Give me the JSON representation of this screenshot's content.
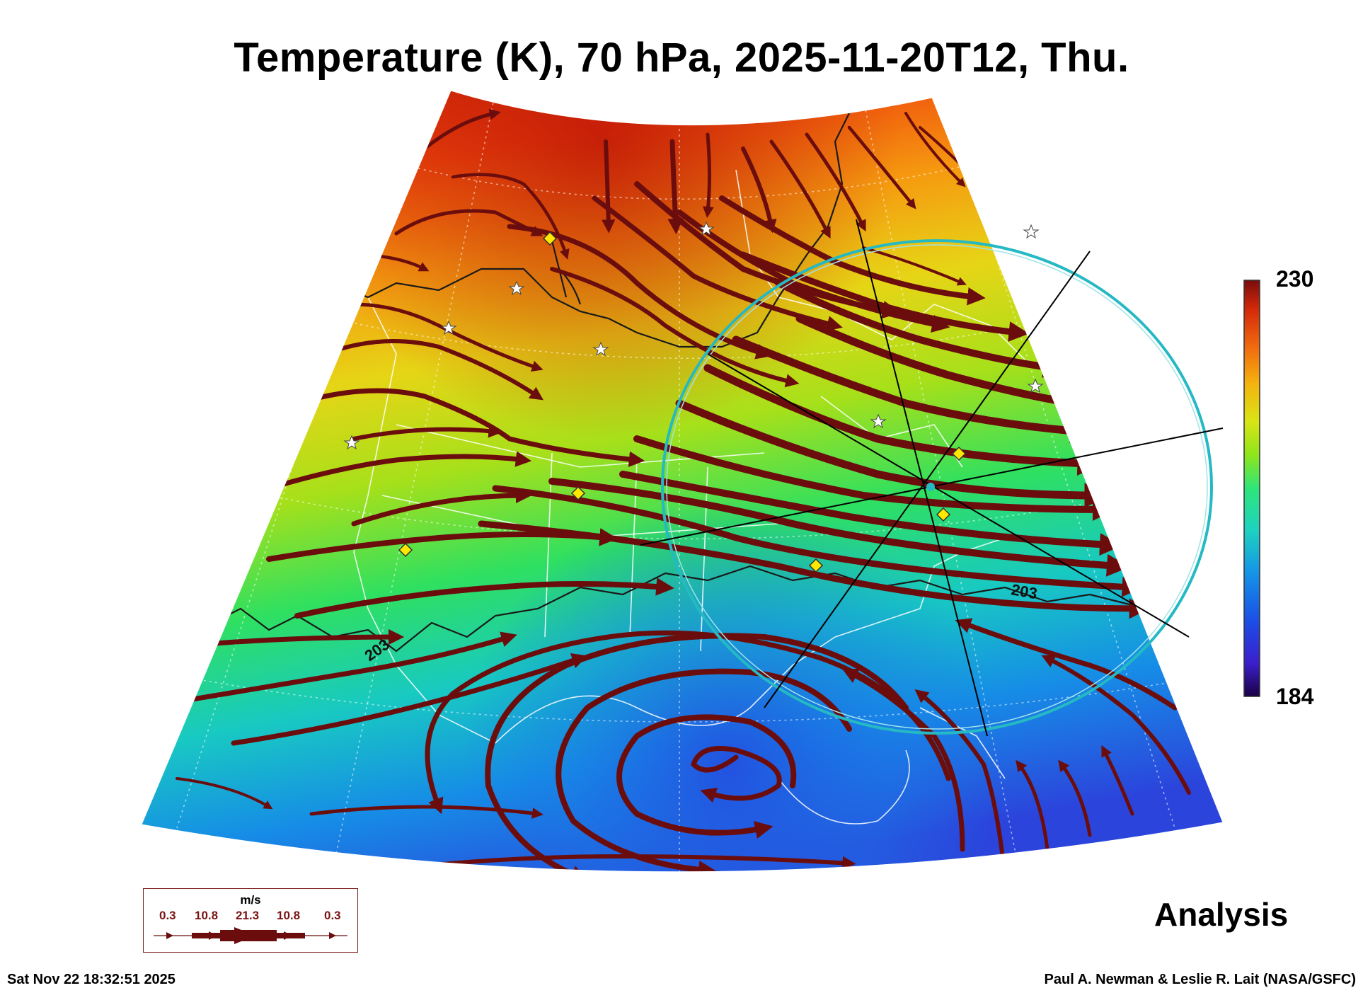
{
  "title": "Temperature (K), 70 hPa, 2025-11-20T12, Thu.",
  "colorbar": {
    "max_label": "230",
    "min_label": "184",
    "colors": [
      "#1a0044",
      "#3b1fcc",
      "#1c4de6",
      "#1596e6",
      "#1ed2c0",
      "#2fe57a",
      "#8ee51b",
      "#d8e514",
      "#f4b40f",
      "#f06a0f",
      "#d42a0a",
      "#7a0c0c"
    ]
  },
  "contour_label": "203",
  "panel_label": "Analysis",
  "legend": {
    "units": "m/s",
    "values": [
      "0.3",
      "10.8",
      "21.3",
      "10.8",
      "0.3"
    ]
  },
  "footer": {
    "timestamp": "Sat Nov 22 18:32:51 2025",
    "credit": "Paul A. Newman & Leslie R. Lait (NASA/GSFC)"
  },
  "colors": {
    "streamline": "#6b0d0d",
    "circle": "#25b9c4",
    "marker_diamond": "#ffe800",
    "marker_star": "#ffffff"
  }
}
